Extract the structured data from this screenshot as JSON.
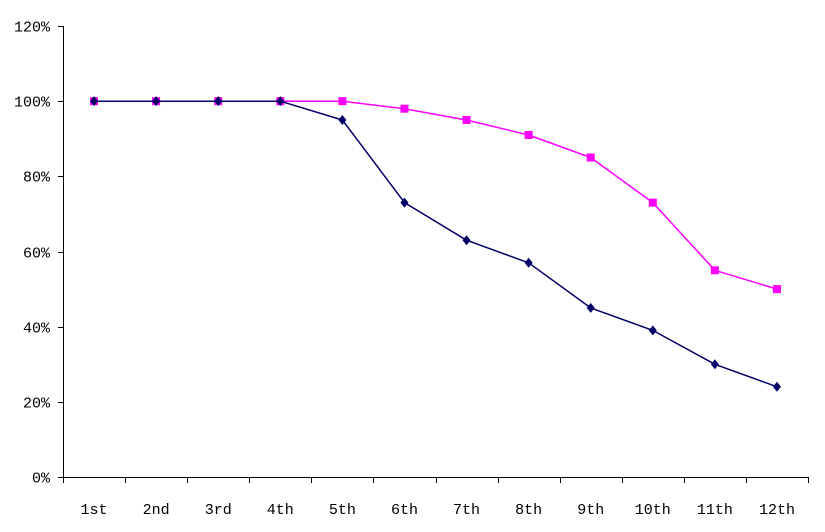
{
  "chart_data": {
    "type": "line",
    "title": "",
    "xlabel": "",
    "ylabel": "",
    "categories": [
      "1st",
      "2nd",
      "3rd",
      "4th",
      "5th",
      "6th",
      "7th",
      "8th",
      "9th",
      "10th",
      "11th",
      "12th"
    ],
    "ylim": [
      0,
      120
    ],
    "y_ticks": [
      0,
      20,
      40,
      60,
      80,
      100,
      120
    ],
    "y_tick_labels": [
      "0%",
      "20%",
      "40%",
      "60%",
      "80%",
      "100%",
      "120%"
    ],
    "grid": false,
    "legend": "none",
    "series": [
      {
        "color": "#ff00ff",
        "marker": "square",
        "values": [
          100,
          100,
          100,
          100,
          100,
          98,
          95,
          91,
          85,
          73,
          55,
          50
        ]
      },
      {
        "color": "#000066",
        "marker": "diamond",
        "values": [
          100,
          100,
          100,
          100,
          95,
          73,
          63,
          57,
          45,
          39,
          30,
          24
        ]
      }
    ]
  }
}
